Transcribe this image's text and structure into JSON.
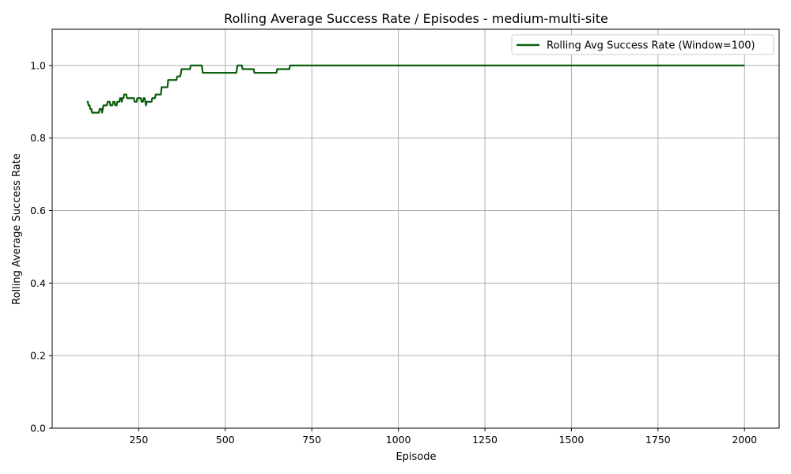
{
  "chart_data": {
    "type": "line",
    "title": "Rolling Average Success Rate / Episodes - medium-multi-site",
    "xlabel": "Episode",
    "ylabel": "Rolling Average Success Rate",
    "xlim": [
      0,
      2100
    ],
    "ylim": [
      0.0,
      1.1
    ],
    "grid": true,
    "legend_position": "top-right",
    "x_ticks": [
      250,
      500,
      750,
      1000,
      1250,
      1500,
      1750,
      2000
    ],
    "x_tick_labels": [
      "250",
      "500",
      "750",
      "1000",
      "1250",
      "1500",
      "1750",
      "2000"
    ],
    "y_ticks": [
      0.0,
      0.2,
      0.4,
      0.6,
      0.8,
      1.0
    ],
    "y_tick_labels": [
      "0.0",
      "0.2",
      "0.4",
      "0.6",
      "0.8",
      "1.0"
    ],
    "series": [
      {
        "name": "Rolling Avg Success Rate (Window=100)",
        "color": "#0b5e0b",
        "points": [
          [
            100,
            0.9
          ],
          [
            103,
            0.9
          ],
          [
            105,
            0.89
          ],
          [
            108,
            0.89
          ],
          [
            110,
            0.88
          ],
          [
            113,
            0.88
          ],
          [
            115,
            0.87
          ],
          [
            135,
            0.87
          ],
          [
            137,
            0.88
          ],
          [
            142,
            0.88
          ],
          [
            144,
            0.87
          ],
          [
            146,
            0.88
          ],
          [
            148,
            0.89
          ],
          [
            158,
            0.89
          ],
          [
            160,
            0.9
          ],
          [
            166,
            0.9
          ],
          [
            168,
            0.89
          ],
          [
            174,
            0.89
          ],
          [
            176,
            0.9
          ],
          [
            180,
            0.9
          ],
          [
            182,
            0.89
          ],
          [
            186,
            0.89
          ],
          [
            188,
            0.9
          ],
          [
            194,
            0.9
          ],
          [
            196,
            0.91
          ],
          [
            199,
            0.91
          ],
          [
            201,
            0.9
          ],
          [
            203,
            0.91
          ],
          [
            206,
            0.91
          ],
          [
            208,
            0.92
          ],
          [
            214,
            0.92
          ],
          [
            216,
            0.91
          ],
          [
            236,
            0.91
          ],
          [
            238,
            0.9
          ],
          [
            244,
            0.9
          ],
          [
            246,
            0.91
          ],
          [
            256,
            0.91
          ],
          [
            258,
            0.9
          ],
          [
            262,
            0.9
          ],
          [
            264,
            0.91
          ],
          [
            267,
            0.91
          ],
          [
            269,
            0.9
          ],
          [
            271,
            0.89
          ],
          [
            273,
            0.9
          ],
          [
            287,
            0.9
          ],
          [
            289,
            0.91
          ],
          [
            297,
            0.91
          ],
          [
            299,
            0.92
          ],
          [
            314,
            0.92
          ],
          [
            316,
            0.94
          ],
          [
            333,
            0.94
          ],
          [
            335,
            0.96
          ],
          [
            359,
            0.96
          ],
          [
            361,
            0.97
          ],
          [
            370,
            0.97
          ],
          [
            372,
            0.98
          ],
          [
            374,
            0.99
          ],
          [
            398,
            0.99
          ],
          [
            400,
            1.0
          ],
          [
            432,
            1.0
          ],
          [
            435,
            0.98
          ],
          [
            532,
            0.98
          ],
          [
            535,
            1.0
          ],
          [
            548,
            1.0
          ],
          [
            550,
            0.99
          ],
          [
            582,
            0.99
          ],
          [
            584,
            0.98
          ],
          [
            648,
            0.98
          ],
          [
            650,
            0.99
          ],
          [
            685,
            0.99
          ],
          [
            687,
            1.0
          ],
          [
            2000,
            1.0
          ]
        ]
      }
    ]
  }
}
